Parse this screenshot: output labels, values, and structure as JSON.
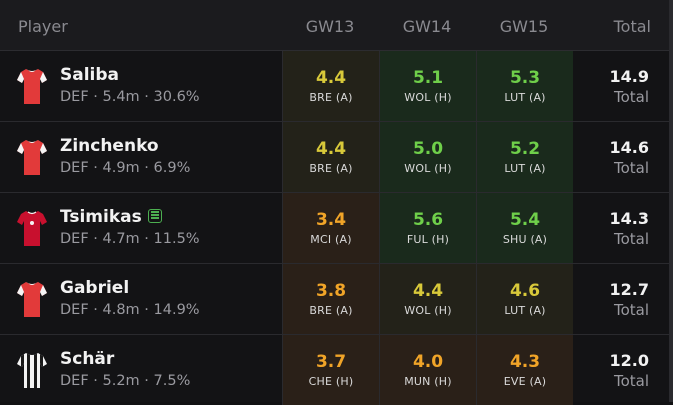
{
  "header": {
    "player": "Player",
    "gw": [
      "GW13",
      "GW14",
      "GW15"
    ],
    "total": "Total"
  },
  "rows": [
    {
      "name": "Saliba",
      "meta": "DEF · 5.4m · 30.6%",
      "shirt": "arsenal",
      "cells": [
        {
          "pts": "4.4",
          "opp": "BRE (A)"
        },
        {
          "pts": "5.1",
          "opp": "WOL (H)"
        },
        {
          "pts": "5.3",
          "opp": "LUT (A)"
        }
      ],
      "total": "14.9",
      "total_label": "Total"
    },
    {
      "name": "Zinchenko",
      "meta": "DEF · 4.9m · 6.9%",
      "shirt": "arsenal",
      "cells": [
        {
          "pts": "4.4",
          "opp": "BRE (A)"
        },
        {
          "pts": "5.0",
          "opp": "WOL (H)"
        },
        {
          "pts": "5.2",
          "opp": "LUT (A)"
        }
      ],
      "total": "14.6",
      "total_label": "Total"
    },
    {
      "name": "Tsimikas",
      "meta": "DEF · 4.7m · 11.5%",
      "shirt": "liverpool",
      "cells": [
        {
          "pts": "3.4",
          "opp": "MCI (A)"
        },
        {
          "pts": "5.6",
          "opp": "FUL (H)"
        },
        {
          "pts": "5.4",
          "opp": "SHU (A)"
        }
      ],
      "total": "14.3",
      "total_label": "Total"
    },
    {
      "name": "Gabriel",
      "meta": "DEF · 4.8m · 14.9%",
      "shirt": "arsenal",
      "cells": [
        {
          "pts": "3.8",
          "opp": "BRE (A)"
        },
        {
          "pts": "4.4",
          "opp": "WOL (H)"
        },
        {
          "pts": "4.6",
          "opp": "LUT (A)"
        }
      ],
      "total": "12.7",
      "total_label": "Total"
    },
    {
      "name": "Schär",
      "meta": "DEF · 5.2m · 7.5%",
      "shirt": "newcastle",
      "cells": [
        {
          "pts": "3.7",
          "opp": "CHE (H)"
        },
        {
          "pts": "4.0",
          "opp": "MUN (H)"
        },
        {
          "pts": "4.3",
          "opp": "EVE (A)"
        }
      ],
      "total": "12.0",
      "total_label": "Total"
    }
  ],
  "colors": {
    "good": "#6fcf4a",
    "mid": "#d8c93a",
    "low": "#f0a428",
    "cell_good_bg": "#1a2a1c",
    "cell_mid_bg": "#232219",
    "cell_low_bg": "#2a2018"
  }
}
